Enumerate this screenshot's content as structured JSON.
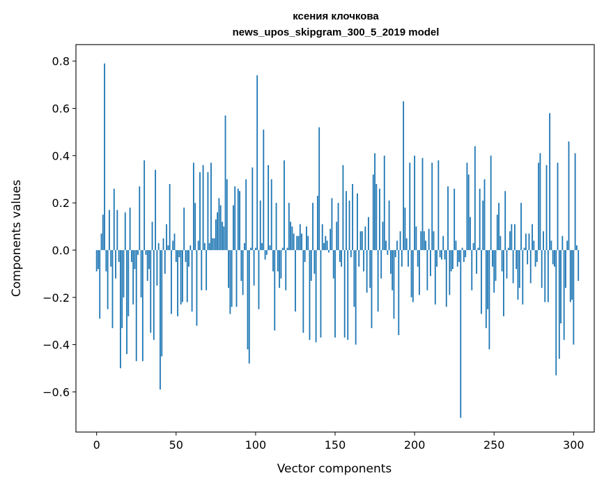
{
  "chart_data": {
    "type": "bar",
    "title_line1": "ксения клочкова",
    "title_line2": "news_upos_skipgram_300_5_2019 model",
    "xlabel": "Vector components",
    "ylabel": "Components values",
    "xlim": [
      -13,
      313
    ],
    "ylim": [
      -0.77,
      0.87
    ],
    "xticks": [
      0,
      50,
      100,
      150,
      200,
      250,
      300
    ],
    "yticks": [
      -0.6,
      -0.4,
      -0.2,
      0.0,
      0.2,
      0.4,
      0.6,
      0.8
    ],
    "ytick_labels": [
      "−0.6",
      "−0.4",
      "−0.2",
      "0.0",
      "0.2",
      "0.4",
      "0.6",
      "0.8"
    ],
    "bar_color": "#1f77b4",
    "values": [
      -0.09,
      -0.08,
      -0.29,
      0.07,
      0.15,
      0.79,
      -0.09,
      -0.25,
      0.17,
      -0.07,
      -0.33,
      0.26,
      -0.12,
      0.17,
      -0.05,
      -0.5,
      -0.33,
      -0.2,
      0.16,
      -0.44,
      -0.28,
      0.18,
      -0.05,
      -0.23,
      -0.08,
      -0.47,
      -0.02,
      0.27,
      -0.2,
      -0.47,
      0.38,
      -0.02,
      -0.13,
      -0.08,
      -0.35,
      0.12,
      -0.38,
      0.34,
      -0.15,
      0.03,
      -0.59,
      -0.45,
      0.05,
      -0.1,
      0.11,
      0.02,
      0.28,
      -0.27,
      0.04,
      0.07,
      -0.05,
      -0.28,
      -0.03,
      -0.23,
      -0.22,
      0.18,
      -0.05,
      -0.22,
      -0.07,
      0.02,
      -0.26,
      0.37,
      0.2,
      -0.32,
      0.04,
      0.33,
      -0.17,
      0.36,
      0.03,
      -0.17,
      0.33,
      0.03,
      0.37,
      0.05,
      0.05,
      0.13,
      0.16,
      0.22,
      0.19,
      0.12,
      0.1,
      0.57,
      0.3,
      -0.16,
      -0.27,
      -0.24,
      0.19,
      0.27,
      -0.24,
      0.26,
      0.25,
      -0.13,
      -0.19,
      0.03,
      0.3,
      -0.42,
      -0.48,
      0.01,
      0.35,
      -0.15,
      0.01,
      0.74,
      -0.25,
      0.21,
      0.03,
      0.51,
      -0.04,
      -0.02,
      0.36,
      0.02,
      0.3,
      -0.09,
      -0.34,
      0.2,
      -0.09,
      -0.16,
      -0.12,
      0.01,
      0.38,
      -0.17,
      0.01,
      0.2,
      0.12,
      0.1,
      0.07,
      -0.26,
      0.06,
      0.06,
      0.11,
      0.07,
      -0.35,
      -0.05,
      0.1,
      0.06,
      -0.38,
      -0.13,
      0.2,
      -0.1,
      -0.39,
      0.23,
      0.52,
      -0.37,
      0.11,
      0.03,
      0.06,
      0.04,
      -0.01,
      0.09,
      0.22,
      -0.12,
      -0.37,
      0.12,
      0.2,
      -0.05,
      -0.07,
      0.36,
      -0.37,
      0.25,
      -0.38,
      0.21,
      -0.03,
      0.28,
      -0.24,
      -0.4,
      0.24,
      -0.07,
      0.08,
      0.08,
      -0.09,
      0.1,
      -0.18,
      0.14,
      -0.16,
      -0.33,
      0.32,
      0.41,
      0.28,
      -0.26,
      0.26,
      -0.12,
      0.12,
      0.4,
      0.04,
      -0.02,
      0.21,
      -0.1,
      -0.17,
      -0.29,
      -0.03,
      0.04,
      -0.36,
      0.08,
      -0.07,
      0.63,
      0.18,
      0.05,
      -0.07,
      0.37,
      -0.2,
      -0.22,
      0.4,
      0.1,
      -0.07,
      -0.19,
      0.08,
      0.39,
      0.08,
      0.04,
      -0.17,
      0.09,
      -0.11,
      0.37,
      0.08,
      -0.23,
      -0.07,
      0.38,
      -0.03,
      -0.04,
      0.06,
      -0.04,
      -0.24,
      0.27,
      -0.19,
      -0.09,
      -0.08,
      0.26,
      0.04,
      -0.07,
      -0.05,
      -0.71,
      0.01,
      -0.05,
      -0.03,
      0.37,
      0.32,
      0.14,
      -0.17,
      0.03,
      0.44,
      -0.1,
      0.01,
      0.26,
      -0.27,
      0.21,
      0.3,
      -0.33,
      -0.25,
      -0.42,
      0.4,
      -0.07,
      -0.18,
      -0.13,
      0.15,
      0.2,
      0.06,
      -0.09,
      -0.28,
      0.25,
      -0.12,
      0.01,
      0.08,
      0.11,
      -0.14,
      0.11,
      -0.08,
      -0.21,
      -0.16,
      0.2,
      -0.23,
      0.01,
      0.07,
      -0.06,
      0.07,
      -0.14,
      0.11,
      0.04,
      -0.07,
      -0.05,
      0.37,
      0.41,
      -0.16,
      0.08,
      -0.22,
      0.36,
      -0.22,
      0.58,
      0.04,
      -0.06,
      -0.07,
      -0.53,
      0.37,
      -0.46,
      -0.31,
      0.06,
      -0.38,
      -0.16,
      0.04,
      0.46,
      -0.22,
      -0.21,
      -0.4,
      0.41,
      0.02,
      -0.13
    ]
  }
}
